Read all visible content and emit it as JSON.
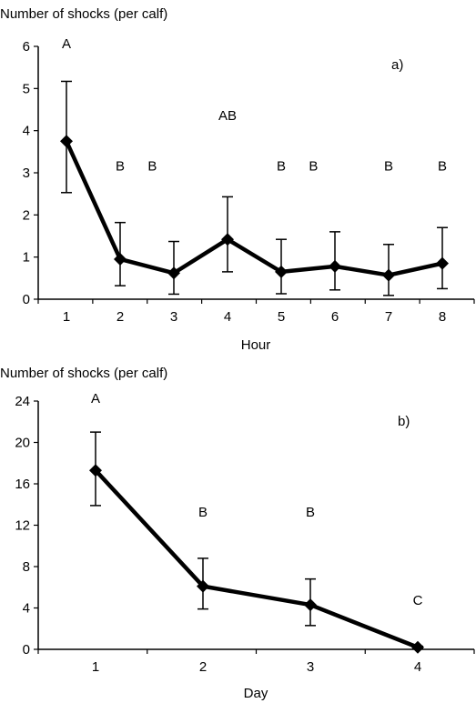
{
  "chart_data": [
    {
      "type": "line",
      "panel_label": "a)",
      "title": "",
      "ylabel": "Number of shocks (per calf)",
      "xlabel": "Hour",
      "x": [
        1,
        2,
        3,
        4,
        5,
        6,
        7,
        8
      ],
      "values": [
        3.75,
        0.95,
        0.62,
        1.42,
        0.65,
        0.78,
        0.57,
        0.85
      ],
      "err_upper": [
        5.17,
        1.82,
        1.37,
        2.43,
        1.42,
        1.6,
        1.3,
        1.7
      ],
      "err_lower": [
        2.53,
        0.32,
        0.12,
        0.65,
        0.13,
        0.22,
        0.09,
        0.25
      ],
      "significance": [
        {
          "text": "A",
          "x": 1,
          "y": 6.0
        },
        {
          "text": "B",
          "x": 2,
          "y": 3.1
        },
        {
          "text": "B",
          "x": 2.6,
          "y": 3.1
        },
        {
          "text": "AB",
          "x": 4,
          "y": 4.3
        },
        {
          "text": "B",
          "x": 5,
          "y": 3.1
        },
        {
          "text": "B",
          "x": 5.6,
          "y": 3.1
        },
        {
          "text": "B",
          "x": 7,
          "y": 3.1
        },
        {
          "text": "B",
          "x": 8,
          "y": 3.1
        }
      ],
      "xticks": [
        "1",
        "2",
        "3",
        "4",
        "5",
        "6",
        "7",
        "8"
      ],
      "yticks": [
        "0",
        "1",
        "2",
        "3",
        "4",
        "5",
        "6"
      ],
      "ylim": [
        0,
        6
      ],
      "grid": false,
      "line_color": "#000000"
    },
    {
      "type": "line",
      "panel_label": "b)",
      "title": "",
      "ylabel": "Number of shocks (per calf)",
      "xlabel": "Day",
      "x": [
        1,
        2,
        3,
        4
      ],
      "values": [
        17.3,
        6.1,
        4.3,
        0.2
      ],
      "err_upper": [
        21.0,
        8.8,
        6.8,
        0.3
      ],
      "err_lower": [
        13.9,
        3.9,
        2.3,
        0.1
      ],
      "significance": [
        {
          "text": "A",
          "x": 1,
          "y": 24.0
        },
        {
          "text": "B",
          "x": 2,
          "y": 13.0
        },
        {
          "text": "B",
          "x": 3,
          "y": 13.0
        },
        {
          "text": "C",
          "x": 4,
          "y": 4.5
        }
      ],
      "xticks": [
        "1",
        "2",
        "3",
        "4"
      ],
      "yticks": [
        "0",
        "4",
        "8",
        "12",
        "16",
        "20",
        "24"
      ],
      "ylim": [
        0,
        24
      ],
      "grid": false,
      "line_color": "#000000"
    }
  ]
}
